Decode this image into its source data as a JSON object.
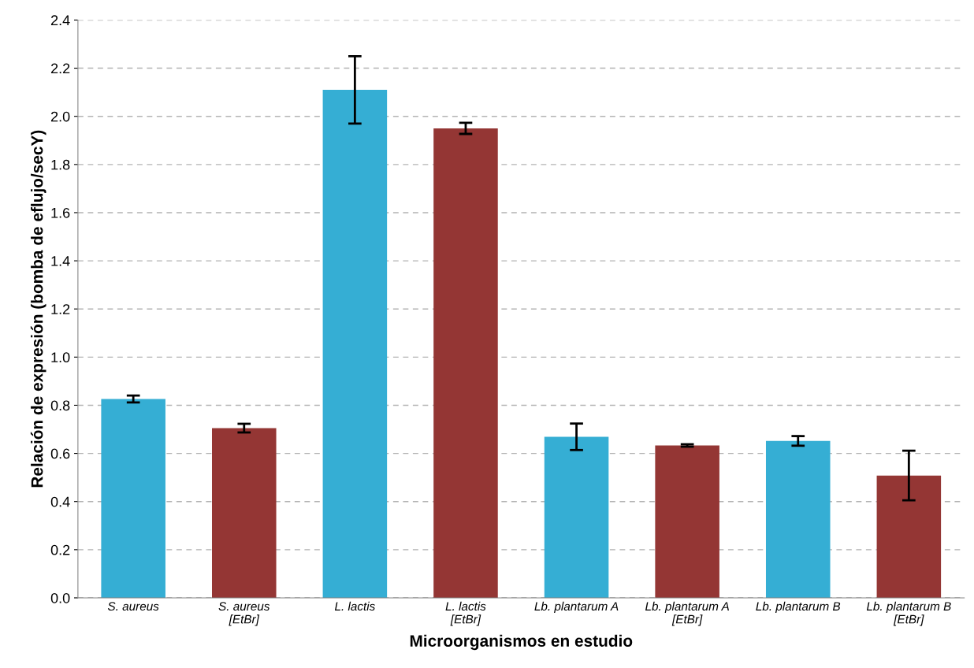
{
  "chart_data": {
    "type": "bar",
    "xlabel": "Microorganismos en estudio",
    "ylabel": "Relación de expresión (bomba de eflujo/secY)",
    "categories": [
      "S. aureus",
      "S. aureus\n[EtBr]",
      "L. lactis",
      "L. lactis\n[EtBr]",
      "Lb. plantarum A",
      "Lb. plantarum A\n[EtBr]",
      "Lb. plantarum B",
      "Lb. plantarum B\n[EtBr]"
    ],
    "values": [
      0.826,
      0.705,
      2.11,
      1.95,
      0.669,
      0.633,
      0.652,
      0.508
    ],
    "errors": [
      0.014,
      0.018,
      0.14,
      0.023,
      0.055,
      0.005,
      0.02,
      0.103
    ],
    "colors": [
      "#35aed4",
      "#943634",
      "#35aed4",
      "#943634",
      "#35aed4",
      "#943634",
      "#35aed4",
      "#943634"
    ],
    "ylim": [
      0,
      2.4
    ],
    "yticks": [
      {
        "value": 0,
        "label": "0.0"
      },
      {
        "value": 0.2,
        "label": "0.2"
      },
      {
        "value": 0.4,
        "label": "0.4"
      },
      {
        "value": 0.6,
        "label": "0.6"
      },
      {
        "value": 0.8,
        "label": "0.8"
      },
      {
        "value": 1.0,
        "label": "1.0"
      },
      {
        "value": 1.2,
        "label": "1.2"
      },
      {
        "value": 1.4,
        "label": "1.4"
      },
      {
        "value": 1.6,
        "label": "1.6"
      },
      {
        "value": 1.8,
        "label": "1.8"
      },
      {
        "value": 2.0,
        "label": "2.0"
      },
      {
        "value": 2.2,
        "label": "2.2"
      },
      {
        "value": 2.4,
        "label": "2.4"
      }
    ],
    "grid": "y",
    "legend": false
  }
}
